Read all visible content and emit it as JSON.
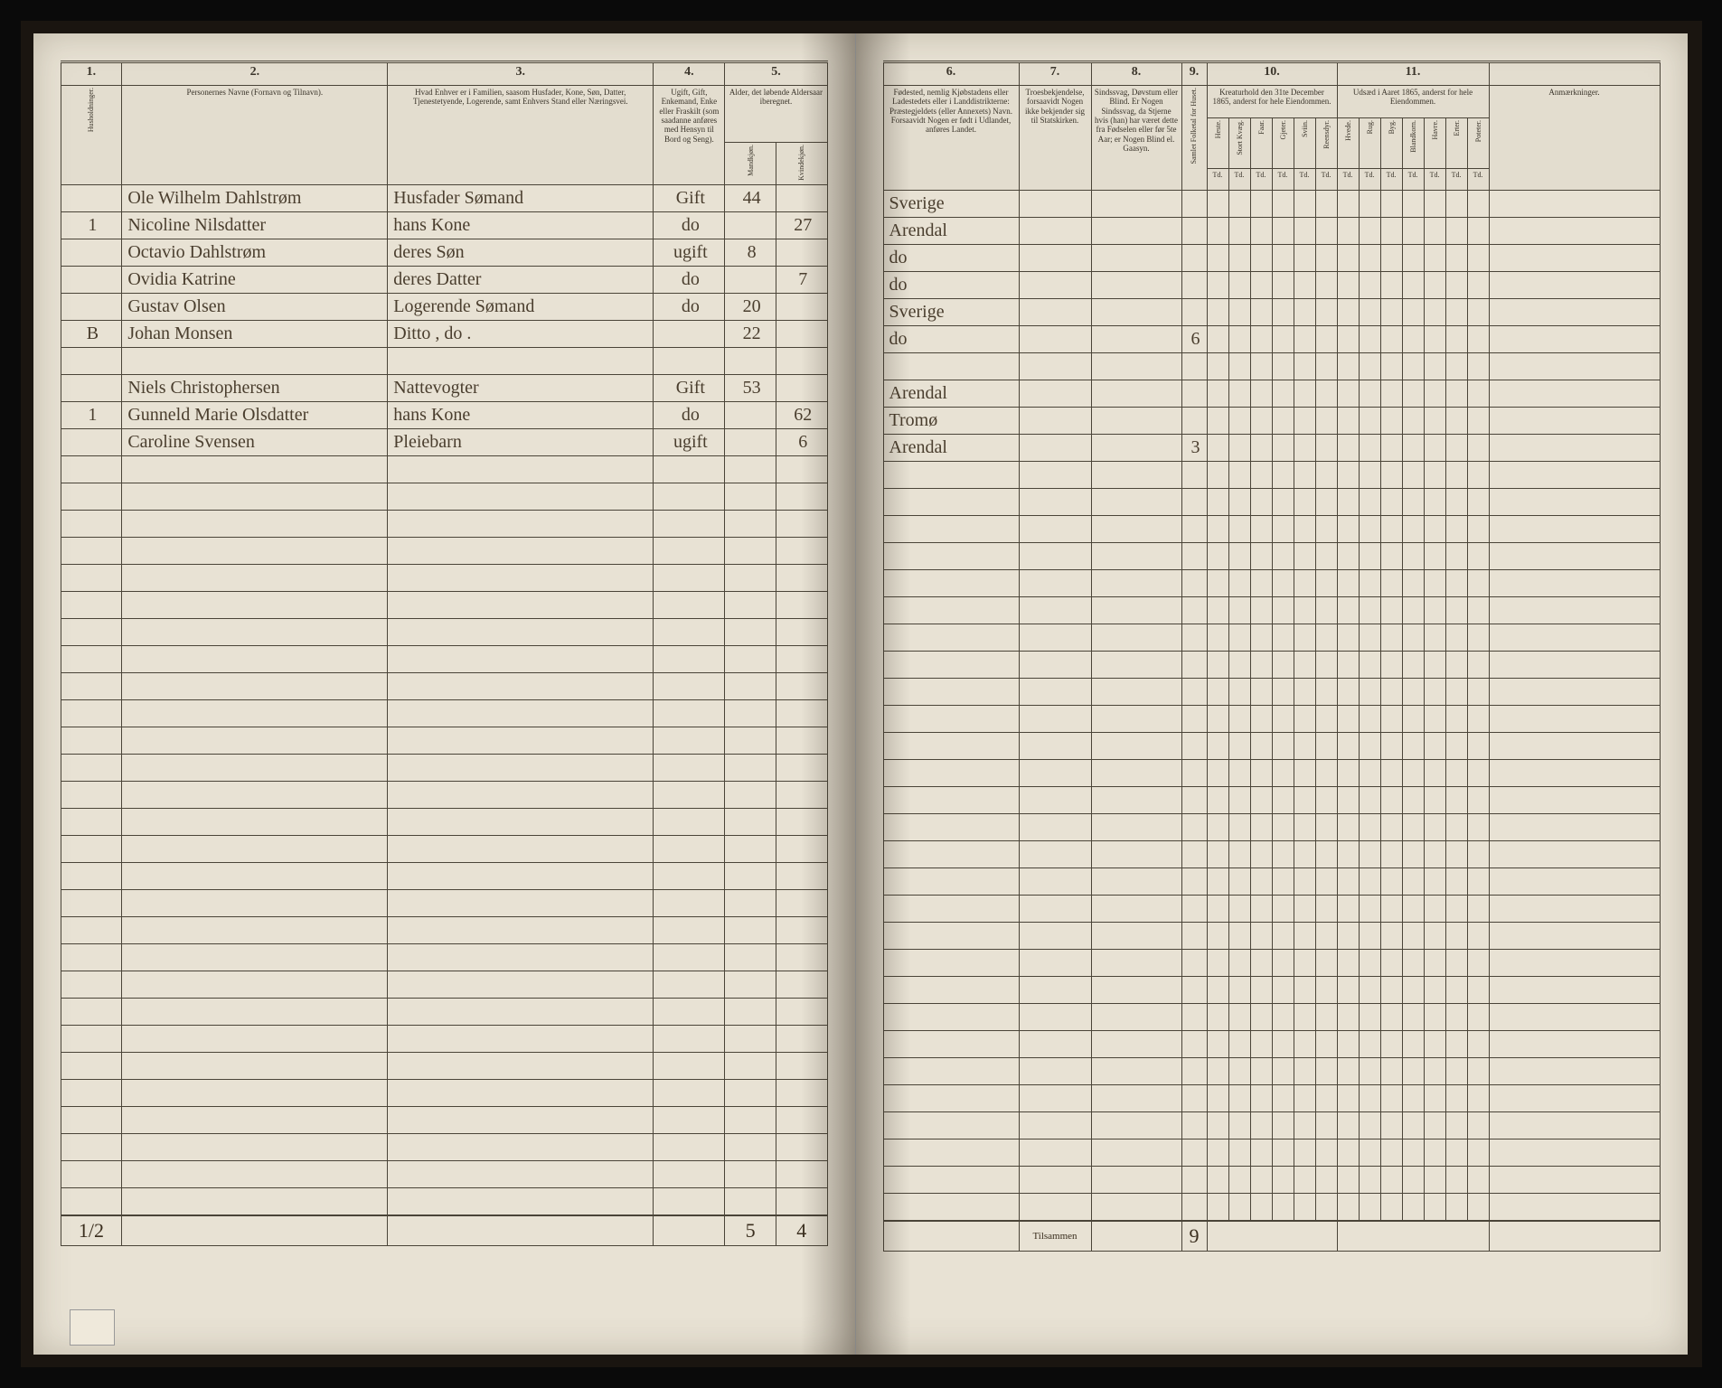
{
  "left": {
    "colnums": [
      "1.",
      "2.",
      "3.",
      "4.",
      "5."
    ],
    "headers": {
      "c1": "Husholdninger.",
      "c2": "Personernes Navne (Fornavn og Tilnavn).",
      "c3": "Hvad Enhver er i Familien, saasom Husfader, Kone, Søn, Datter, Tjenestetyende, Logerende, samt Enhvers Stand eller Næringsvei.",
      "c4": "Ugift, Gift, Enkemand, Enke eller Fraskilt (som saadanne anføres med Hensyn til Bord og Seng).",
      "c5": "Alder, det løbende Aldersaar iberegnet.",
      "c5a": "Mandkjøn.",
      "c5b": "Kvindekjøn."
    },
    "rows": [
      {
        "hh": "",
        "name": "Ole Wilhelm Dahlstrøm",
        "rel": "Husfader Sømand",
        "stat": "Gift",
        "m": "44",
        "f": ""
      },
      {
        "hh": "1",
        "name": "Nicoline Nilsdatter",
        "rel": "hans Kone",
        "stat": "do",
        "m": "",
        "f": "27"
      },
      {
        "hh": "",
        "name": "Octavio Dahlstrøm",
        "rel": "deres Søn",
        "stat": "ugift",
        "m": "8",
        "f": ""
      },
      {
        "hh": "",
        "name": "Ovidia Katrine",
        "rel": "deres Datter",
        "stat": "do",
        "m": "",
        "f": "7"
      },
      {
        "hh": "",
        "name": "Gustav Olsen",
        "rel": "Logerende Sømand",
        "stat": "do",
        "m": "20",
        "f": ""
      },
      {
        "hh": "B",
        "name": "Johan Monsen",
        "rel": "Ditto , do .",
        "stat": "",
        "m": "22",
        "f": ""
      },
      {
        "hh": "",
        "name": "",
        "rel": "",
        "stat": "",
        "m": "",
        "f": ""
      },
      {
        "hh": "",
        "name": "Niels Christophersen",
        "rel": "Nattevogter",
        "stat": "Gift",
        "m": "53",
        "f": ""
      },
      {
        "hh": "1",
        "name": "Gunneld Marie Olsdatter",
        "rel": "hans Kone",
        "stat": "do",
        "m": "",
        "f": "62"
      },
      {
        "hh": "",
        "name": "Caroline Svensen",
        "rel": "Pleiebarn",
        "stat": "ugift",
        "m": "",
        "f": "6"
      }
    ],
    "totals": {
      "hh": "1/2",
      "m": "5",
      "f": "4"
    }
  },
  "right": {
    "colnums": [
      "6.",
      "7.",
      "8.",
      "9.",
      "10.",
      "11.",
      ""
    ],
    "headers": {
      "c6": "Fødested, nemlig Kjøbstadens eller Ladestedets eller i Landdistrikterne: Præstegjeldets (eller Annexets) Navn. Forsaavidt Nogen er født i Udlandet, anføres Landet.",
      "c7": "Troesbekjendelse, forsaavidt Nogen ikke bekjender sig til Statskirken.",
      "c8": "Sindssvag, Døvstum eller Blind. Er Nogen Sindssvag, da Stjerne hvis (han) har været dette fra Fødselen eller før 5te Aar; er Nogen Blind el. Gaasyn.",
      "c9": "Samlet Folketal for Huset.",
      "c10": "Kreaturhold den 31te December 1865, anderst for hele Eiendommen.",
      "c10subs": [
        "Heste.",
        "Stort Kvæg.",
        "Faar.",
        "Gjeter.",
        "Sviin.",
        "Reensdyr."
      ],
      "c11": "Udsæd i Aaret 1865, anderst for hele Eiendommen.",
      "c11subs": [
        "Hvede.",
        "Rug.",
        "Byg.",
        "Blandkorn.",
        "Havre.",
        "Erter.",
        "Poteter."
      ],
      "c12": "Anmærkninger."
    },
    "unit": "Td.",
    "rows": [
      {
        "birth": "Sverige",
        "c9": ""
      },
      {
        "birth": "Arendal",
        "c9": ""
      },
      {
        "birth": "do",
        "c9": ""
      },
      {
        "birth": "do",
        "c9": ""
      },
      {
        "birth": "Sverige",
        "c9": ""
      },
      {
        "birth": "do",
        "c9": "6"
      },
      {
        "birth": "",
        "c9": ""
      },
      {
        "birth": "Arendal",
        "c9": ""
      },
      {
        "birth": "Tromø",
        "c9": ""
      },
      {
        "birth": "Arendal",
        "c9": "3"
      }
    ],
    "totals": {
      "label": "Tilsammen",
      "c9": "9"
    }
  },
  "blank_rows": 28
}
